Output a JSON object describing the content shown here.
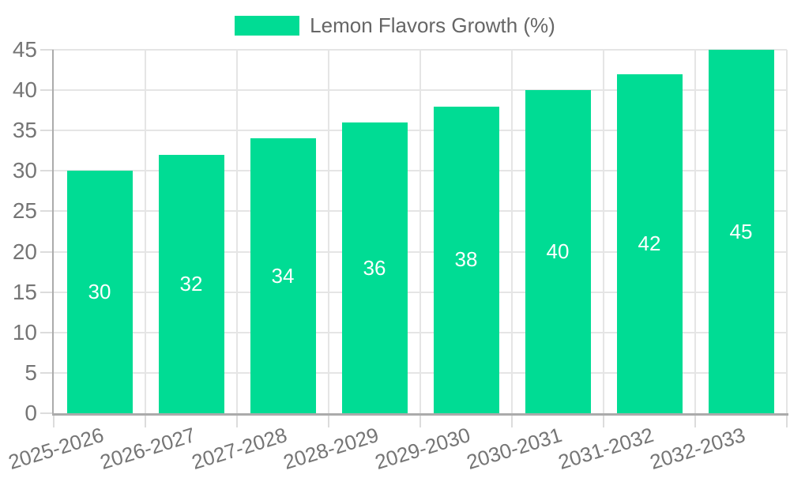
{
  "chart_data": {
    "type": "bar",
    "title": "",
    "xlabel": "",
    "ylabel": "",
    "categories": [
      "2025-2026",
      "2026-2027",
      "2027-2028",
      "2028-2029",
      "2029-2030",
      "2030-2031",
      "2031-2032",
      "2032-2033"
    ],
    "values": [
      30,
      32,
      34,
      36,
      38,
      40,
      42,
      45
    ],
    "series_label": "Lemon Flavors Growth (%)",
    "ylim": [
      0,
      45
    ],
    "yticks": [
      0,
      5,
      10,
      15,
      20,
      25,
      30,
      35,
      40,
      45
    ],
    "grid": true,
    "legend_position": "top",
    "value_labels_inside_bars": true
  },
  "legend": {
    "label": "Lemon Flavors Growth (%)"
  },
  "colors": {
    "bar": "#00DC94",
    "bar_label": "#FFFFFF",
    "axis_line": "#ABABAB",
    "gridline": "#E5E5E5",
    "tick_mark": "#DCDCDC",
    "tick_label": "#757575",
    "legend_text": "#666666",
    "background": "#FFFFFF"
  }
}
